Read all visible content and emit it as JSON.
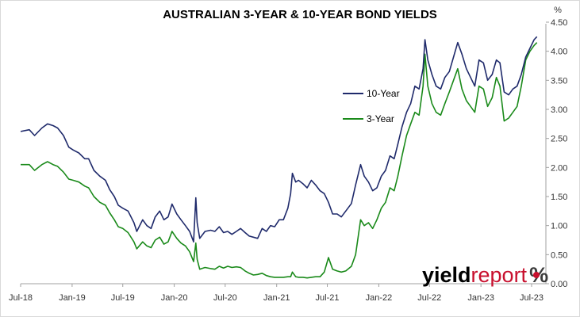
{
  "chart_data": {
    "type": "line",
    "title": "AUSTRALIAN 3-YEAR & 10-YEAR BOND YIELDS",
    "ylabel": "%",
    "ylim": [
      0,
      4.5
    ],
    "yticks": [
      "0.00",
      "0.50",
      "1.00",
      "1.50",
      "2.00",
      "2.50",
      "3.00",
      "3.50",
      "4.00",
      "4.50"
    ],
    "x_range": [
      "2018-07-01",
      "2023-07-31"
    ],
    "xtick_labels": [
      "Jul-18",
      "Jan-19",
      "Jul-19",
      "Jan-20",
      "Jul-20",
      "Jan-21",
      "Jul-21",
      "Jan-22",
      "Jul-22",
      "Jan-23",
      "Jul-23"
    ],
    "xtick_dates": [
      "2018-07-01",
      "2019-01-01",
      "2019-07-01",
      "2020-01-01",
      "2020-07-01",
      "2021-01-01",
      "2021-07-01",
      "2022-01-01",
      "2022-07-01",
      "2023-01-01",
      "2023-07-01"
    ],
    "grid": false,
    "legend_position": "center-right",
    "series": [
      {
        "name": "10-Year",
        "color": "#1f2a6b",
        "points": [
          [
            "2018-07-01",
            2.62
          ],
          [
            "2018-08-01",
            2.65
          ],
          [
            "2018-08-20",
            2.55
          ],
          [
            "2018-09-15",
            2.68
          ],
          [
            "2018-10-05",
            2.75
          ],
          [
            "2018-10-25",
            2.72
          ],
          [
            "2018-11-10",
            2.68
          ],
          [
            "2018-12-01",
            2.55
          ],
          [
            "2018-12-20",
            2.35
          ],
          [
            "2019-01-05",
            2.3
          ],
          [
            "2019-01-25",
            2.25
          ],
          [
            "2019-02-15",
            2.15
          ],
          [
            "2019-03-01",
            2.15
          ],
          [
            "2019-03-20",
            1.95
          ],
          [
            "2019-04-10",
            1.85
          ],
          [
            "2019-04-30",
            1.78
          ],
          [
            "2019-05-15",
            1.62
          ],
          [
            "2019-06-01",
            1.5
          ],
          [
            "2019-06-15",
            1.35
          ],
          [
            "2019-07-01",
            1.3
          ],
          [
            "2019-07-20",
            1.25
          ],
          [
            "2019-08-10",
            1.05
          ],
          [
            "2019-08-20",
            0.9
          ],
          [
            "2019-09-10",
            1.1
          ],
          [
            "2019-09-25",
            1.0
          ],
          [
            "2019-10-10",
            0.95
          ],
          [
            "2019-10-25",
            1.15
          ],
          [
            "2019-11-10",
            1.25
          ],
          [
            "2019-11-25",
            1.1
          ],
          [
            "2019-12-10",
            1.15
          ],
          [
            "2019-12-24",
            1.37
          ],
          [
            "2020-01-10",
            1.2
          ],
          [
            "2020-01-25",
            1.1
          ],
          [
            "2020-02-10",
            1.0
          ],
          [
            "2020-02-25",
            0.9
          ],
          [
            "2020-03-10",
            0.72
          ],
          [
            "2020-03-18",
            1.48
          ],
          [
            "2020-03-23",
            1.05
          ],
          [
            "2020-04-01",
            0.78
          ],
          [
            "2020-04-20",
            0.9
          ],
          [
            "2020-05-10",
            0.92
          ],
          [
            "2020-05-25",
            0.9
          ],
          [
            "2020-06-10",
            0.98
          ],
          [
            "2020-06-25",
            0.88
          ],
          [
            "2020-07-10",
            0.9
          ],
          [
            "2020-07-25",
            0.85
          ],
          [
            "2020-08-10",
            0.9
          ],
          [
            "2020-08-25",
            0.95
          ],
          [
            "2020-09-10",
            0.88
          ],
          [
            "2020-09-25",
            0.82
          ],
          [
            "2020-10-10",
            0.8
          ],
          [
            "2020-10-25",
            0.78
          ],
          [
            "2020-11-10",
            0.95
          ],
          [
            "2020-11-25",
            0.9
          ],
          [
            "2020-12-10",
            1.0
          ],
          [
            "2020-12-25",
            0.98
          ],
          [
            "2021-01-10",
            1.1
          ],
          [
            "2021-01-25",
            1.1
          ],
          [
            "2021-02-10",
            1.3
          ],
          [
            "2021-02-20",
            1.55
          ],
          [
            "2021-02-26",
            1.9
          ],
          [
            "2021-03-10",
            1.75
          ],
          [
            "2021-03-20",
            1.78
          ],
          [
            "2021-04-05",
            1.72
          ],
          [
            "2021-04-20",
            1.65
          ],
          [
            "2021-05-05",
            1.78
          ],
          [
            "2021-05-20",
            1.7
          ],
          [
            "2021-06-05",
            1.6
          ],
          [
            "2021-06-20",
            1.55
          ],
          [
            "2021-07-05",
            1.4
          ],
          [
            "2021-07-20",
            1.2
          ],
          [
            "2021-08-05",
            1.2
          ],
          [
            "2021-08-20",
            1.15
          ],
          [
            "2021-09-05",
            1.25
          ],
          [
            "2021-09-25",
            1.38
          ],
          [
            "2021-10-10",
            1.7
          ],
          [
            "2021-10-28",
            2.05
          ],
          [
            "2021-11-10",
            1.85
          ],
          [
            "2021-11-25",
            1.75
          ],
          [
            "2021-12-10",
            1.6
          ],
          [
            "2021-12-25",
            1.65
          ],
          [
            "2022-01-10",
            1.85
          ],
          [
            "2022-01-25",
            1.95
          ],
          [
            "2022-02-10",
            2.2
          ],
          [
            "2022-02-25",
            2.15
          ],
          [
            "2022-03-10",
            2.4
          ],
          [
            "2022-03-25",
            2.7
          ],
          [
            "2022-04-10",
            2.95
          ],
          [
            "2022-04-25",
            3.1
          ],
          [
            "2022-05-10",
            3.4
          ],
          [
            "2022-05-25",
            3.35
          ],
          [
            "2022-06-08",
            3.7
          ],
          [
            "2022-06-15",
            4.2
          ],
          [
            "2022-06-25",
            3.85
          ],
          [
            "2022-07-10",
            3.6
          ],
          [
            "2022-07-25",
            3.4
          ],
          [
            "2022-08-10",
            3.35
          ],
          [
            "2022-08-25",
            3.55
          ],
          [
            "2022-09-10",
            3.65
          ],
          [
            "2022-09-25",
            3.9
          ],
          [
            "2022-10-10",
            4.15
          ],
          [
            "2022-10-25",
            3.95
          ],
          [
            "2022-11-10",
            3.7
          ],
          [
            "2022-11-25",
            3.55
          ],
          [
            "2022-12-10",
            3.4
          ],
          [
            "2022-12-25",
            3.85
          ],
          [
            "2023-01-10",
            3.8
          ],
          [
            "2023-01-25",
            3.5
          ],
          [
            "2023-02-10",
            3.6
          ],
          [
            "2023-02-25",
            3.85
          ],
          [
            "2023-03-10",
            3.8
          ],
          [
            "2023-03-25",
            3.3
          ],
          [
            "2023-04-10",
            3.25
          ],
          [
            "2023-04-25",
            3.35
          ],
          [
            "2023-05-10",
            3.4
          ],
          [
            "2023-05-25",
            3.6
          ],
          [
            "2023-06-10",
            3.9
          ],
          [
            "2023-06-25",
            4.05
          ],
          [
            "2023-07-10",
            4.2
          ],
          [
            "2023-07-20",
            4.25
          ]
        ]
      },
      {
        "name": "3-Year",
        "color": "#1a8a1a",
        "points": [
          [
            "2018-07-01",
            2.05
          ],
          [
            "2018-08-01",
            2.05
          ],
          [
            "2018-08-20",
            1.95
          ],
          [
            "2018-09-15",
            2.05
          ],
          [
            "2018-10-05",
            2.1
          ],
          [
            "2018-10-25",
            2.05
          ],
          [
            "2018-11-10",
            2.02
          ],
          [
            "2018-12-01",
            1.92
          ],
          [
            "2018-12-20",
            1.8
          ],
          [
            "2019-01-05",
            1.78
          ],
          [
            "2019-01-25",
            1.75
          ],
          [
            "2019-02-15",
            1.68
          ],
          [
            "2019-03-01",
            1.65
          ],
          [
            "2019-03-20",
            1.5
          ],
          [
            "2019-04-10",
            1.4
          ],
          [
            "2019-04-30",
            1.35
          ],
          [
            "2019-05-15",
            1.22
          ],
          [
            "2019-06-01",
            1.1
          ],
          [
            "2019-06-15",
            0.98
          ],
          [
            "2019-07-01",
            0.95
          ],
          [
            "2019-07-20",
            0.88
          ],
          [
            "2019-08-10",
            0.72
          ],
          [
            "2019-08-20",
            0.6
          ],
          [
            "2019-09-10",
            0.72
          ],
          [
            "2019-09-25",
            0.65
          ],
          [
            "2019-10-10",
            0.62
          ],
          [
            "2019-10-25",
            0.75
          ],
          [
            "2019-11-10",
            0.8
          ],
          [
            "2019-11-25",
            0.68
          ],
          [
            "2019-12-10",
            0.72
          ],
          [
            "2019-12-24",
            0.9
          ],
          [
            "2020-01-10",
            0.78
          ],
          [
            "2020-01-25",
            0.7
          ],
          [
            "2020-02-10",
            0.65
          ],
          [
            "2020-02-25",
            0.55
          ],
          [
            "2020-03-10",
            0.38
          ],
          [
            "2020-03-18",
            0.7
          ],
          [
            "2020-03-23",
            0.42
          ],
          [
            "2020-04-01",
            0.25
          ],
          [
            "2020-04-20",
            0.28
          ],
          [
            "2020-05-10",
            0.26
          ],
          [
            "2020-05-25",
            0.25
          ],
          [
            "2020-06-10",
            0.3
          ],
          [
            "2020-06-25",
            0.27
          ],
          [
            "2020-07-10",
            0.3
          ],
          [
            "2020-07-25",
            0.28
          ],
          [
            "2020-08-10",
            0.29
          ],
          [
            "2020-08-25",
            0.28
          ],
          [
            "2020-09-10",
            0.22
          ],
          [
            "2020-09-25",
            0.18
          ],
          [
            "2020-10-10",
            0.15
          ],
          [
            "2020-10-25",
            0.16
          ],
          [
            "2020-11-10",
            0.18
          ],
          [
            "2020-11-25",
            0.14
          ],
          [
            "2020-12-10",
            0.12
          ],
          [
            "2020-12-25",
            0.11
          ],
          [
            "2021-01-10",
            0.11
          ],
          [
            "2021-01-25",
            0.11
          ],
          [
            "2021-02-10",
            0.12
          ],
          [
            "2021-02-20",
            0.12
          ],
          [
            "2021-02-26",
            0.2
          ],
          [
            "2021-03-10",
            0.12
          ],
          [
            "2021-03-20",
            0.11
          ],
          [
            "2021-04-05",
            0.11
          ],
          [
            "2021-04-20",
            0.1
          ],
          [
            "2021-05-05",
            0.11
          ],
          [
            "2021-05-20",
            0.12
          ],
          [
            "2021-06-05",
            0.12
          ],
          [
            "2021-06-20",
            0.2
          ],
          [
            "2021-07-05",
            0.45
          ],
          [
            "2021-07-20",
            0.25
          ],
          [
            "2021-08-05",
            0.22
          ],
          [
            "2021-08-20",
            0.2
          ],
          [
            "2021-09-05",
            0.22
          ],
          [
            "2021-09-25",
            0.3
          ],
          [
            "2021-10-10",
            0.5
          ],
          [
            "2021-10-28",
            1.1
          ],
          [
            "2021-11-10",
            1.0
          ],
          [
            "2021-11-25",
            1.05
          ],
          [
            "2021-12-10",
            0.95
          ],
          [
            "2021-12-25",
            1.1
          ],
          [
            "2022-01-10",
            1.3
          ],
          [
            "2022-01-25",
            1.4
          ],
          [
            "2022-02-10",
            1.65
          ],
          [
            "2022-02-25",
            1.6
          ],
          [
            "2022-03-10",
            1.85
          ],
          [
            "2022-03-25",
            2.2
          ],
          [
            "2022-04-10",
            2.55
          ],
          [
            "2022-04-25",
            2.75
          ],
          [
            "2022-05-10",
            2.95
          ],
          [
            "2022-05-25",
            2.9
          ],
          [
            "2022-06-08",
            3.4
          ],
          [
            "2022-06-15",
            3.95
          ],
          [
            "2022-06-25",
            3.4
          ],
          [
            "2022-07-10",
            3.1
          ],
          [
            "2022-07-25",
            2.95
          ],
          [
            "2022-08-10",
            2.9
          ],
          [
            "2022-08-25",
            3.1
          ],
          [
            "2022-09-10",
            3.3
          ],
          [
            "2022-09-25",
            3.5
          ],
          [
            "2022-10-10",
            3.7
          ],
          [
            "2022-10-25",
            3.35
          ],
          [
            "2022-11-10",
            3.15
          ],
          [
            "2022-11-25",
            3.05
          ],
          [
            "2022-12-10",
            2.95
          ],
          [
            "2022-12-25",
            3.4
          ],
          [
            "2023-01-10",
            3.35
          ],
          [
            "2023-01-25",
            3.05
          ],
          [
            "2023-02-10",
            3.2
          ],
          [
            "2023-02-25",
            3.55
          ],
          [
            "2023-03-10",
            3.4
          ],
          [
            "2023-03-25",
            2.8
          ],
          [
            "2023-04-10",
            2.85
          ],
          [
            "2023-04-25",
            2.95
          ],
          [
            "2023-05-10",
            3.05
          ],
          [
            "2023-05-25",
            3.4
          ],
          [
            "2023-06-10",
            3.85
          ],
          [
            "2023-06-25",
            4.0
          ],
          [
            "2023-07-10",
            4.1
          ],
          [
            "2023-07-20",
            4.15
          ]
        ]
      }
    ]
  },
  "logo": {
    "text_yield": "yield",
    "text_report": "report",
    "text_pct": "%",
    "color_dark": "#000000",
    "color_red": "#c8102e"
  }
}
